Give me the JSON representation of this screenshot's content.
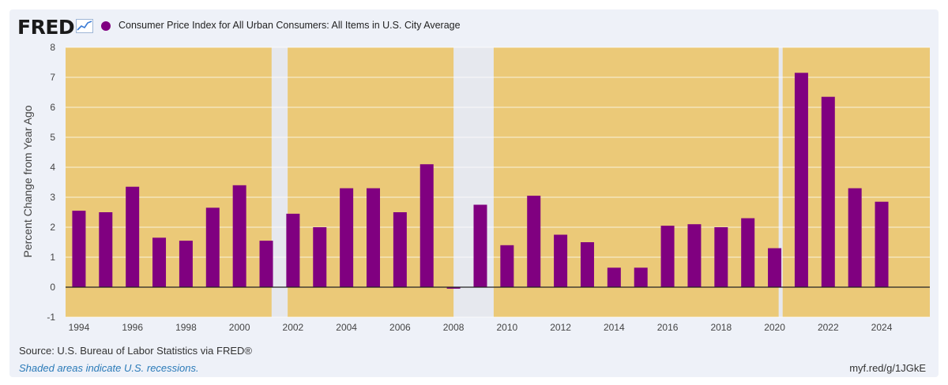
{
  "header": {
    "logo_text": "FRED",
    "legend_label": "Consumer Price Index for All Urban Consumers: All Items in U.S. City Average"
  },
  "footer": {
    "source": "Source: U.S. Bureau of Labor Statistics via FRED®",
    "note": "Shaded areas indicate U.S. recessions.",
    "link": "myf.red/g/1JGkE"
  },
  "colors": {
    "bar": "#800080",
    "plot_background": "#ebc978",
    "recession": "#e6e8ee",
    "panel": "#eef1f8"
  },
  "chart_data": {
    "type": "bar",
    "title": "",
    "xlabel": "",
    "ylabel": "Percent Change from Year Ago",
    "x": [
      1994,
      1995,
      1996,
      1997,
      1998,
      1999,
      2000,
      2001,
      2002,
      2003,
      2004,
      2005,
      2006,
      2007,
      2008,
      2009,
      2010,
      2011,
      2012,
      2013,
      2014,
      2015,
      2016,
      2017,
      2018,
      2019,
      2020,
      2021,
      2022,
      2023,
      2024
    ],
    "series": [
      {
        "values": [
          2.55,
          2.5,
          3.35,
          1.65,
          1.55,
          2.65,
          3.4,
          1.55,
          2.45,
          2.0,
          3.3,
          3.3,
          2.5,
          4.1,
          -0.05,
          2.75,
          1.4,
          3.05,
          1.75,
          1.5,
          0.65,
          0.65,
          2.05,
          2.1,
          2.0,
          2.3,
          1.3,
          7.15,
          6.35,
          3.3,
          2.85
        ]
      }
    ],
    "x_tick_labels": [
      "1994",
      "1996",
      "1998",
      "2000",
      "2002",
      "2004",
      "2006",
      "2008",
      "2010",
      "2012",
      "2014",
      "2016",
      "2018",
      "2020",
      "2022",
      "2024"
    ],
    "y_tick_labels": [
      "-1",
      "0",
      "1",
      "2",
      "3",
      "4",
      "5",
      "6",
      "7",
      "8"
    ],
    "ylim": [
      -1,
      8
    ],
    "xlim": [
      1993.5,
      2025.8
    ],
    "recessions": [
      [
        2001.2,
        2001.8
      ],
      [
        2008.0,
        2009.5
      ],
      [
        2020.15,
        2020.3
      ]
    ],
    "grid": true,
    "legend_position": "top-left"
  }
}
